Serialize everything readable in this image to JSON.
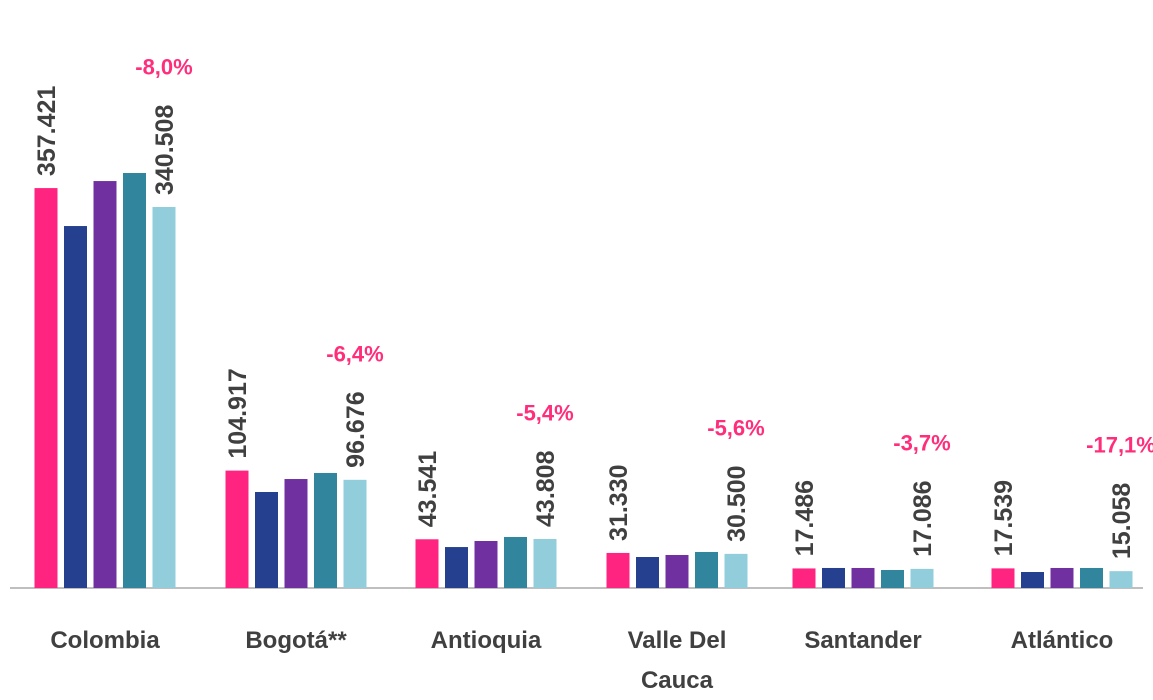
{
  "chart_data": {
    "type": "bar",
    "categories": [
      "Colombia",
      "Bogotá**",
      "Antioquia",
      "Valle Del Cauca",
      "Santander",
      "Atlántico"
    ],
    "series": [
      {
        "color": "#ff2480",
        "values": [
          357421,
          104917,
          43541,
          31330,
          17486,
          17539
        ],
        "value_labels": [
          "357.421",
          "104.917",
          "43.541",
          "31.330",
          "17.486",
          "17.539"
        ]
      },
      {
        "color": "#25408f",
        "values": [
          323500,
          85800,
          36600,
          27700,
          17900,
          14300
        ]
      },
      {
        "color": "#7030a0",
        "values": [
          363700,
          97400,
          42000,
          29500,
          17900,
          17900
        ]
      },
      {
        "color": "#31859c",
        "values": [
          370900,
          102800,
          45600,
          32200,
          16100,
          17900
        ]
      },
      {
        "color": "#92cddc",
        "values": [
          340508,
          96676,
          43808,
          30500,
          17086,
          15058
        ],
        "value_labels": [
          "340.508",
          "96.676",
          "43.808",
          "30.500",
          "17.086",
          "15.058"
        ]
      }
    ],
    "annotations": [
      "-8,0%",
      "-6,4%",
      "-5,4%",
      "-5,6%",
      "-3,7%",
      "-17,1%"
    ]
  }
}
